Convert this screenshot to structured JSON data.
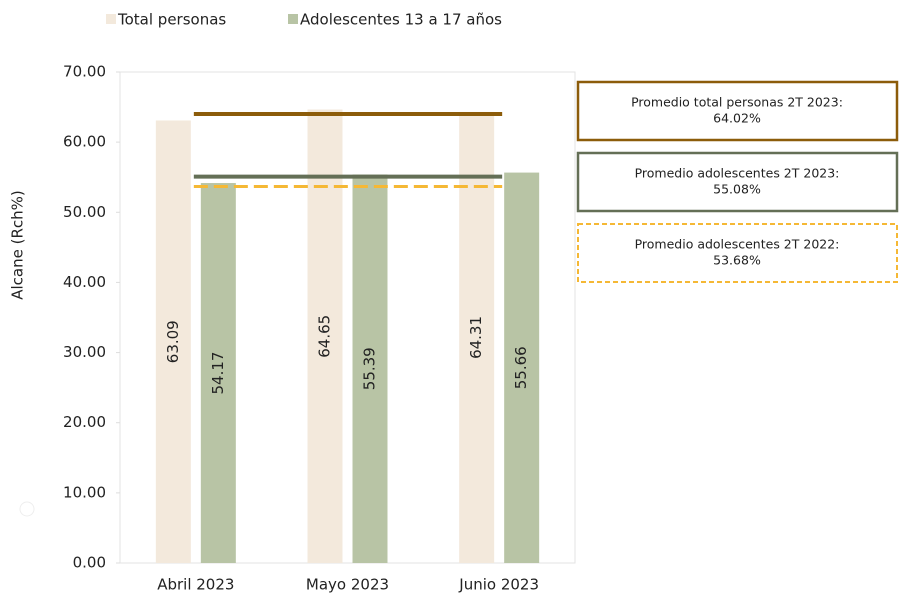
{
  "chart_data": {
    "type": "bar",
    "y_label": "Alcane (Rch%)",
    "categories": [
      "Abril 2023",
      "Mayo 2023",
      "Junio 2023"
    ],
    "series": [
      {
        "name": "Total personas",
        "color": "#f3e9dc",
        "values": [
          63.09,
          64.65,
          64.31
        ]
      },
      {
        "name": "Adolescentes 13 a 17 años",
        "color": "#b8c4a5",
        "values": [
          54.17,
          55.39,
          55.66
        ]
      }
    ],
    "ylim": [
      0,
      70
    ],
    "yticks": [
      {
        "value": 0,
        "label": "0.00"
      },
      {
        "value": 10,
        "label": "10.00"
      },
      {
        "value": 20,
        "label": "20.00"
      },
      {
        "value": 30,
        "label": "30.00"
      },
      {
        "value": 40,
        "label": "40.00"
      },
      {
        "value": 50,
        "label": "50.00"
      },
      {
        "value": 60,
        "label": "60.00"
      },
      {
        "value": 70,
        "label": "70.00"
      }
    ],
    "legend": "top",
    "reference_lines": [
      {
        "label": "Promedio total personas 2T 2023:",
        "value": 64.02,
        "value_label": "64.02%",
        "color": "#8c5c0a",
        "dashed": false
      },
      {
        "label": "Promedio adolescentes 2T 2023:",
        "value": 55.08,
        "value_label": "55.08%",
        "color": "#646f56",
        "dashed": false
      },
      {
        "label": "Promedio adolescentes 2T 2022:",
        "value": 53.68,
        "value_label": "53.68%",
        "color": "#f5b835",
        "dashed": true
      }
    ]
  }
}
